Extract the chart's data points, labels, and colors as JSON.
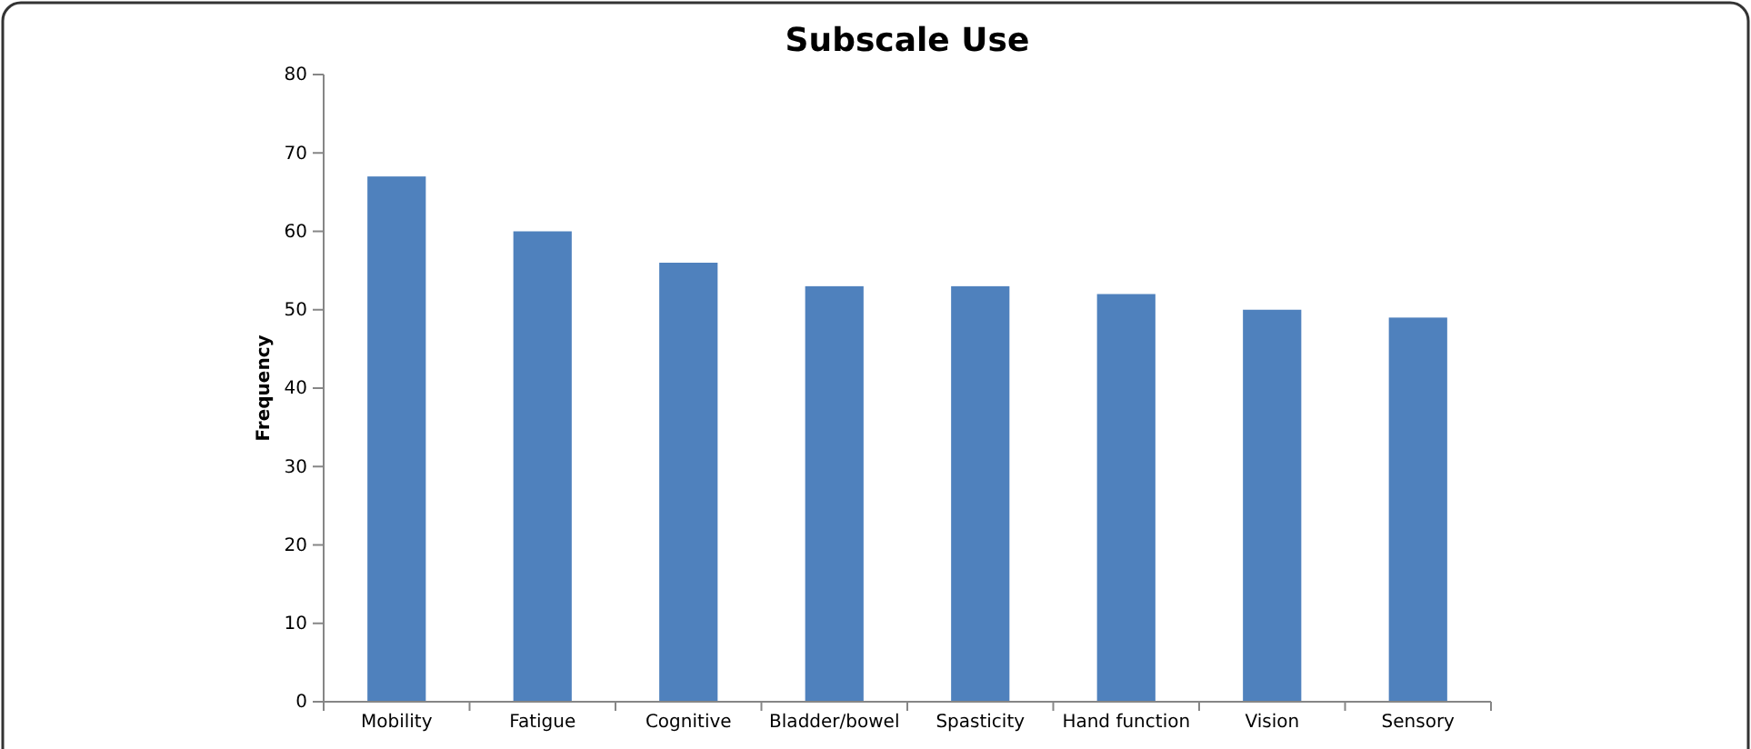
{
  "chart_data": {
    "type": "bar",
    "title": "Subscale Use",
    "ylabel": "Frequency",
    "categories": [
      "Mobility",
      "Fatigue",
      "Cognitive",
      "Bladder/bowel",
      "Spasticity",
      "Hand function",
      "Vision",
      "Sensory"
    ],
    "values": [
      67,
      60,
      56,
      53,
      53,
      52,
      50,
      49
    ],
    "color": "#4f81bd",
    "ylim": [
      0,
      80
    ],
    "yticks": [
      0,
      10,
      20,
      30,
      40,
      50,
      60,
      70,
      80
    ],
    "grid": false
  }
}
